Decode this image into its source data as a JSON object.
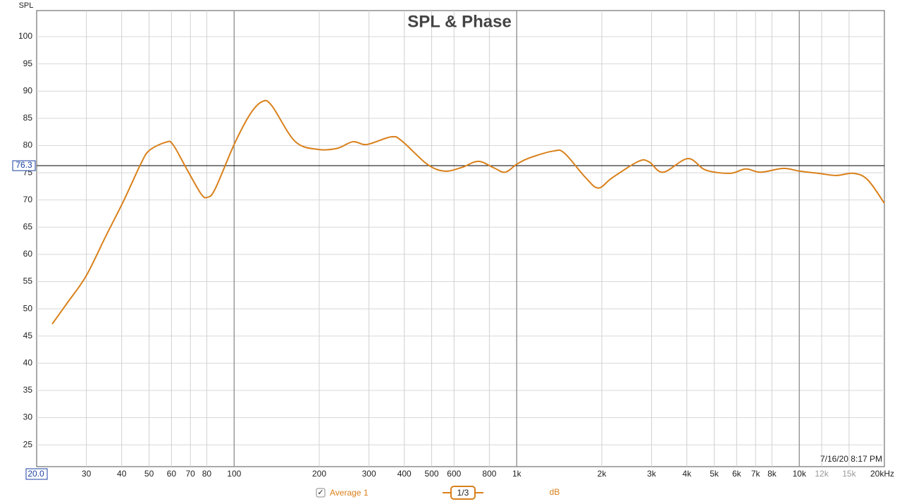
{
  "chart_data": {
    "type": "line",
    "title": "SPL & Phase",
    "y_label": "SPL",
    "timestamp": "7/16/20 8:17 PM",
    "x_log": true,
    "grid": true,
    "xlim": [
      20,
      20000
    ],
    "ylim": [
      21,
      104.8
    ],
    "xticks": [
      {
        "value": 20,
        "label": "20.0"
      },
      30,
      40,
      50,
      60,
      70,
      80,
      100,
      200,
      300,
      400,
      500,
      600,
      800,
      {
        "value": 1000,
        "label": "1k"
      },
      {
        "value": 2000,
        "label": "2k"
      },
      {
        "value": 3000,
        "label": "3k"
      },
      {
        "value": 4000,
        "label": "4k"
      },
      {
        "value": 5000,
        "label": "5k"
      },
      {
        "value": 6000,
        "label": "6k"
      },
      {
        "value": 7000,
        "label": "7k"
      },
      {
        "value": 8000,
        "label": "8k"
      },
      {
        "value": 10000,
        "label": "10k"
      },
      {
        "value": 12000,
        "label": "12k"
      },
      {
        "value": 15000,
        "label": "15k"
      },
      {
        "value": 20000,
        "label": "20kHz"
      }
    ],
    "yticks": [
      25,
      30,
      35,
      40,
      45,
      50,
      55,
      60,
      65,
      70,
      75,
      80,
      85,
      90,
      95,
      100
    ],
    "cursor": 76.3,
    "smoothing": "1/3",
    "unit": "dB",
    "x": [
      22.7,
      25.6,
      29.9,
      35.1,
      40.6,
      46.8,
      50.1,
      57.3,
      60.7,
      68.1,
      76.4,
      80.4,
      85.6,
      100,
      114,
      126,
      136,
      164,
      197,
      232,
      263,
      295,
      360,
      393,
      481,
      555,
      641,
      731,
      830,
      910,
      1002,
      1106,
      1352,
      1475,
      1753,
      1944,
      2180,
      2697,
      2940,
      3297,
      4034,
      4658,
      5692,
      6462,
      7295,
      8767,
      10000,
      11690,
      13500,
      15560,
      17460,
      20000
    ],
    "series": [
      {
        "name": "Average 1",
        "color": "#d9801a",
        "values": [
          47.2,
          51,
          56,
          63.3,
          69.8,
          76.7,
          79.1,
          80.6,
          80.2,
          75.6,
          71.1,
          70.5,
          72,
          80.2,
          85.8,
          88.1,
          87.3,
          80.8,
          79.3,
          79.5,
          80.7,
          80.2,
          81.6,
          80.8,
          76.6,
          75.3,
          76,
          77.1,
          75.9,
          75.1,
          76.6,
          77.7,
          79,
          78.6,
          74.1,
          72.2,
          74.1,
          77.1,
          77,
          75.1,
          77.6,
          75.5,
          74.9,
          75.7,
          75.1,
          75.8,
          75.3,
          74.9,
          74.5,
          74.9,
          73.7,
          69.4
        ]
      }
    ]
  }
}
